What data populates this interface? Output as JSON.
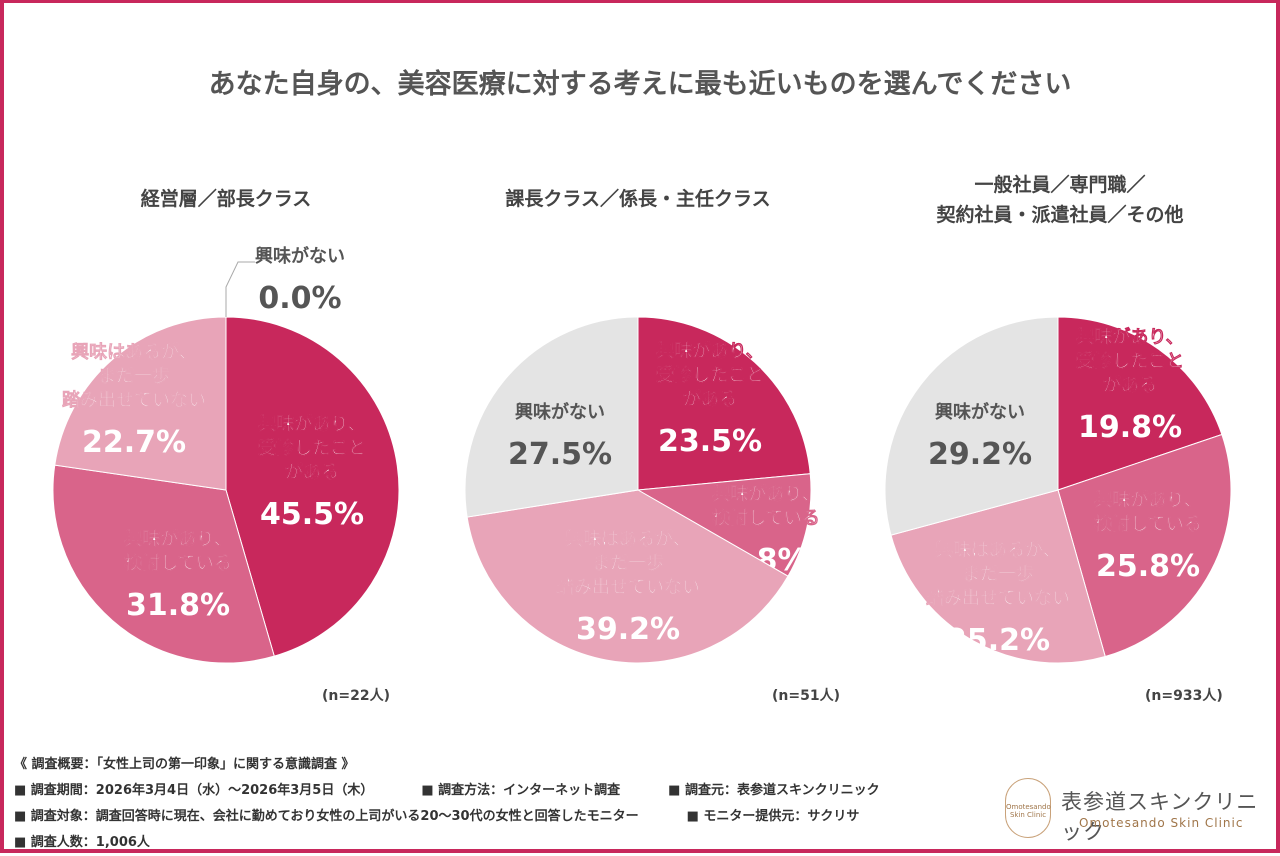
{
  "title": "あなた自身の、美容医療に対する考えに最も近いものを選んでください",
  "colors": {
    "received": "#c8285c",
    "considering": "#d9648a",
    "hesitant": "#e8a4b8",
    "none": "#e4e4e4",
    "frame": "#c8285c"
  },
  "chart_data": [
    {
      "type": "pie",
      "title": "経営層／部長クラス",
      "n_label": "(n=22人)",
      "slices": [
        {
          "label": "興味があり、受診したことがある",
          "value": 45.5,
          "text": "45.5%"
        },
        {
          "label": "興味があり、検討している",
          "value": 31.8,
          "text": "31.8%"
        },
        {
          "label": "興味はあるが、まだ一歩踏み出せていない",
          "value": 22.7,
          "text": "22.7%"
        },
        {
          "label": "興味がない",
          "value": 0.0,
          "text": "0.0%"
        }
      ]
    },
    {
      "type": "pie",
      "title": "課長クラス／係長・主任クラス",
      "n_label": "(n=51人)",
      "slices": [
        {
          "label": "興味があり、受診したことがある",
          "value": 23.5,
          "text": "23.5%"
        },
        {
          "label": "興味があり、検討している",
          "value": 9.8,
          "text": "9.8%"
        },
        {
          "label": "興味はあるが、まだ一歩踏み出せていない",
          "value": 39.2,
          "text": "39.2%"
        },
        {
          "label": "興味がない",
          "value": 27.5,
          "text": "27.5%"
        }
      ]
    },
    {
      "type": "pie",
      "title": "一般社員／専門職／契約社員・派遣社員／その他",
      "title_lines": [
        "一般社員／専門職／",
        "契約社員・派遣社員／その他"
      ],
      "n_label": "(n=933人)",
      "slices": [
        {
          "label": "興味があり、受診したことがある",
          "value": 19.8,
          "text": "19.8%"
        },
        {
          "label": "興味があり、検討している",
          "value": 25.8,
          "text": "25.8%"
        },
        {
          "label": "興味はあるが、まだ一歩踏み出せていない",
          "value": 25.2,
          "text": "25.2%"
        },
        {
          "label": "興味がない",
          "value": 29.2,
          "text": "29.2%"
        }
      ]
    }
  ],
  "footer": {
    "heading": "《 調査概要：「女性上司の第一印象」に関する意識調査 》",
    "period": "■ 調査期間：2026年3月4日（水）～2026年3月5日（木）",
    "method": "■ 調査方法：インターネット調査",
    "source": "■ 調査元：表参道スキンクリニック",
    "target": "■ 調査対象：調査回答時に現在、会社に勤めており女性の上司がいる20～30代の女性と回答したモニター",
    "provider": "■ モニター提供元：サクリサ",
    "count": "■ 調査人数：1,006人"
  },
  "logo": {
    "jp": "表参道スキンクリニック",
    "en": "Omotesando Skin Clinic",
    "badge": "Omotesando Skin Clinic"
  }
}
